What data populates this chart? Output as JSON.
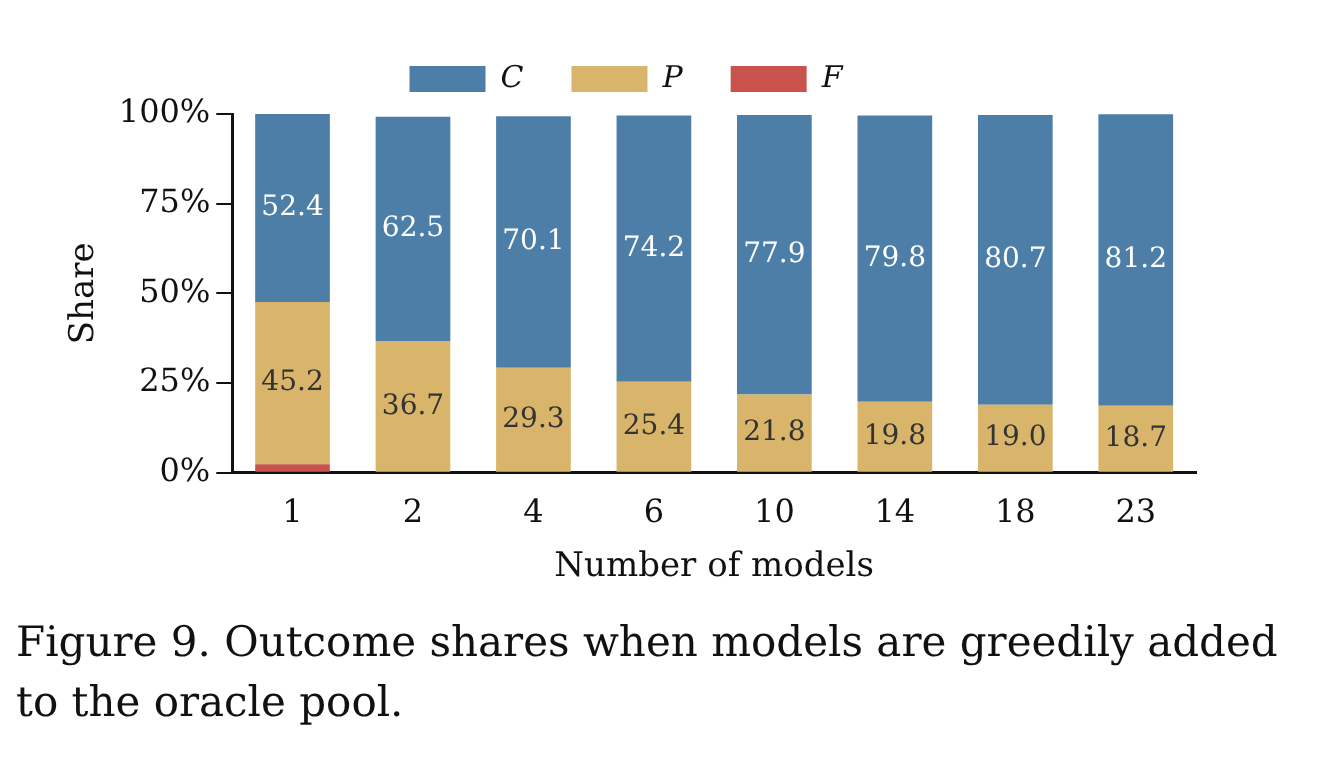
{
  "chart_data": {
    "type": "bar",
    "stacked": true,
    "xlabel": "Number of models",
    "ylabel": "Share",
    "categories": [
      "1",
      "2",
      "4",
      "6",
      "10",
      "14",
      "18",
      "23"
    ],
    "series": [
      {
        "name": "F",
        "color": "#c9534c",
        "values": [
          2.4,
          null,
          null,
          null,
          null,
          null,
          null,
          null
        ]
      },
      {
        "name": "P",
        "color": "#d8b56a",
        "values": [
          45.2,
          36.7,
          29.3,
          25.4,
          21.8,
          19.8,
          19.0,
          18.7
        ],
        "value_labels": [
          "45.2",
          "36.7",
          "29.3",
          "25.4",
          "21.8",
          "19.8",
          "19.0",
          "18.7"
        ]
      },
      {
        "name": "C",
        "color": "#4c7ea8",
        "values": [
          52.4,
          62.5,
          70.1,
          74.2,
          77.9,
          79.8,
          80.7,
          81.2
        ],
        "value_labels": [
          "52.4",
          "62.5",
          "70.1",
          "74.2",
          "77.9",
          "79.8",
          "80.7",
          "81.2"
        ]
      }
    ],
    "ylim": [
      0,
      100
    ],
    "yticks": [
      {
        "value": 0,
        "label": "0%"
      },
      {
        "value": 25,
        "label": "25%"
      },
      {
        "value": 50,
        "label": "50%"
      },
      {
        "value": 75,
        "label": "75%"
      },
      {
        "value": 100,
        "label": "100%"
      }
    ],
    "grid": false,
    "legend": "top",
    "annotations": [
      "Figure 9. Outcome shares when models are greedily added to the oracle pool."
    ]
  }
}
